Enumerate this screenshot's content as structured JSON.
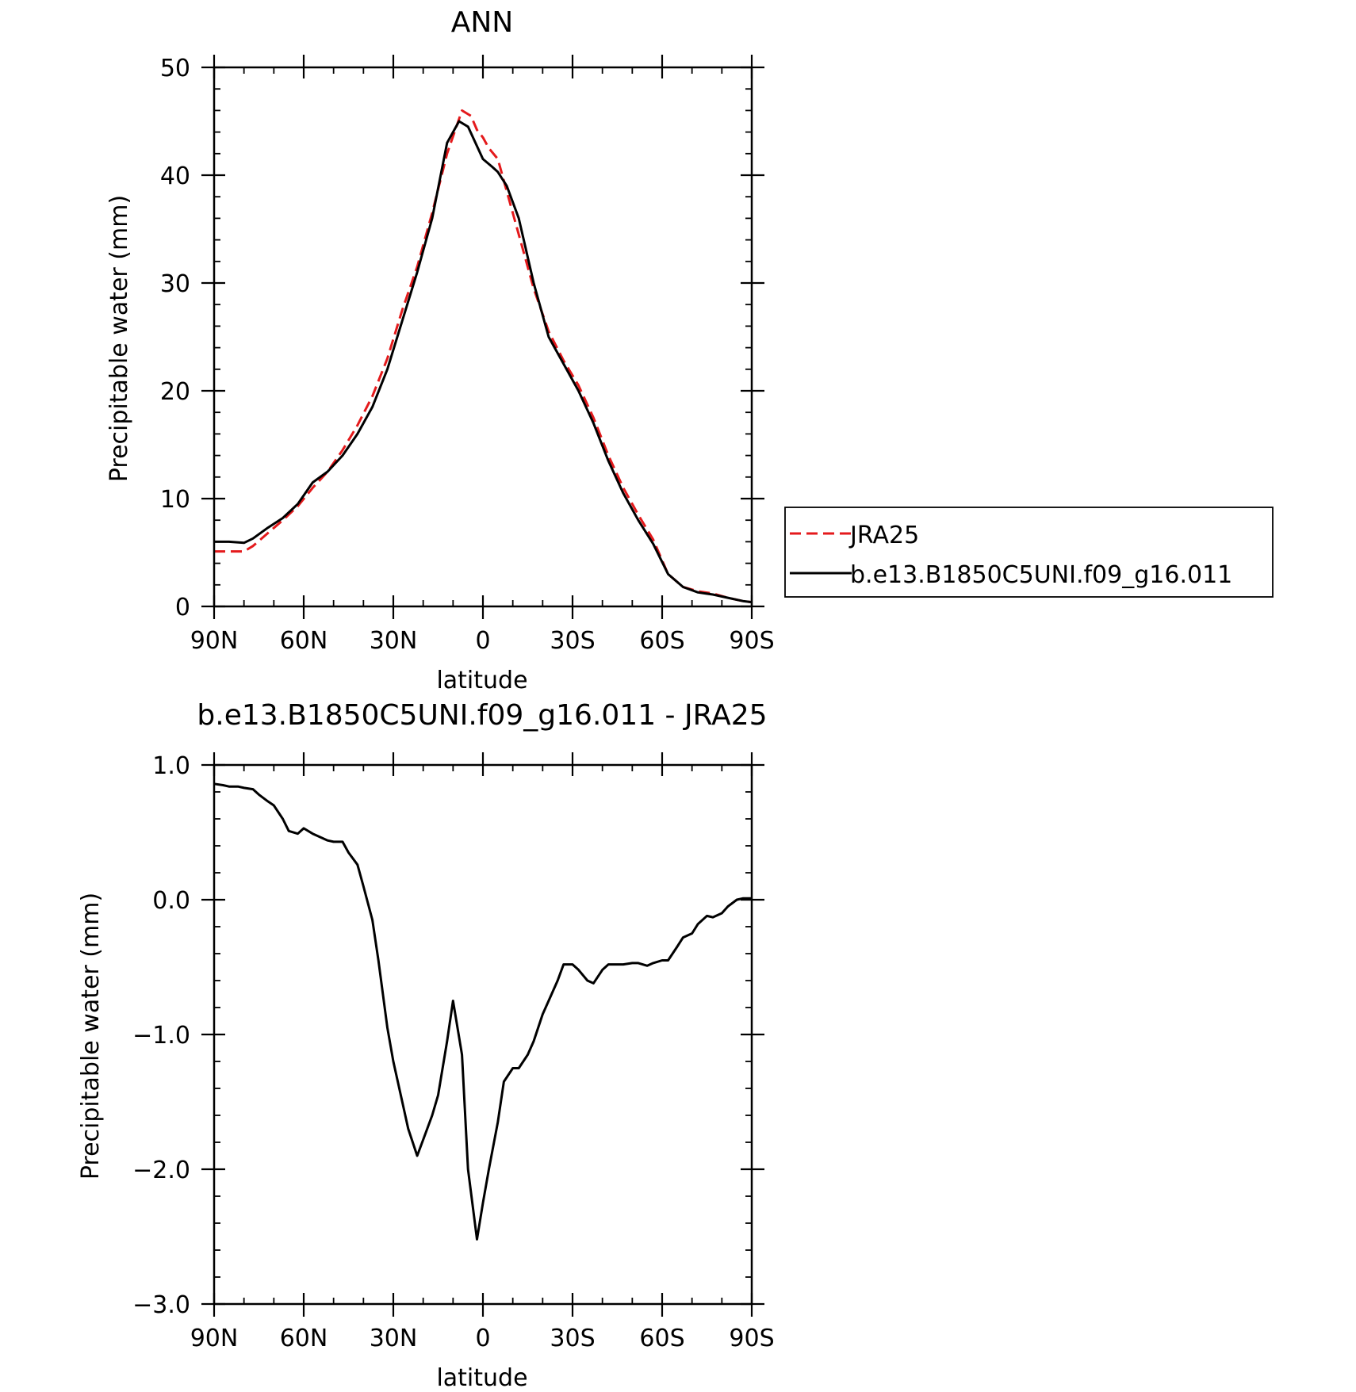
{
  "colors": {
    "jra": "#e41a1c",
    "model": "#000000",
    "axis": "#000000"
  },
  "chart_data": [
    {
      "type": "line",
      "title": "ANN",
      "xlabel": "latitude",
      "ylabel": "Precipitable water (mm)",
      "xlim": [
        90,
        -90
      ],
      "ylim": [
        0,
        50
      ],
      "yticks": [
        0,
        10,
        20,
        30,
        40,
        50
      ],
      "ytick_labels": [
        "0",
        "10",
        "20",
        "30",
        "40",
        "50"
      ],
      "xticks": [
        90,
        60,
        30,
        0,
        -30,
        -60,
        -90
      ],
      "xtick_labels": [
        "90N",
        "60N",
        "30N",
        "0",
        "30S",
        "60S",
        "90S"
      ],
      "legend": {
        "position": "right",
        "entries": [
          "JRA25",
          "b.e13.B1850C5UNI.f09_g16.011"
        ]
      },
      "series": [
        {
          "name": "JRA25",
          "style": "dashed",
          "color": "#e41a1c",
          "x": [
            90,
            80,
            77,
            72,
            67,
            62,
            57,
            52,
            47,
            42,
            37,
            32,
            27,
            22,
            17,
            12,
            7,
            4,
            2,
            0,
            -2,
            -5,
            -8,
            -12,
            -17,
            -22,
            -27,
            -32,
            -37,
            -42,
            -47,
            -52,
            -57,
            -62,
            -67,
            -72,
            -77,
            -82,
            -87,
            -90
          ],
          "y": [
            5.1,
            5.1,
            5.6,
            6.8,
            8.0,
            9.3,
            11.0,
            12.5,
            14.5,
            16.8,
            19.5,
            23.0,
            27.5,
            31.5,
            36.5,
            42.0,
            46.0,
            45.5,
            44.2,
            43.5,
            42.5,
            41.5,
            38.5,
            34.5,
            29.5,
            25.5,
            22.8,
            20.5,
            17.5,
            14.0,
            11.0,
            8.5,
            6.2,
            3.0,
            1.8,
            1.4,
            1.2,
            0.8,
            0.5,
            0.4
          ]
        },
        {
          "name": "b.e13.B1850C5UNI.f09_g16.011",
          "style": "solid",
          "color": "#000000",
          "x": [
            90,
            85,
            80,
            77,
            72,
            67,
            62,
            57,
            52,
            47,
            42,
            37,
            32,
            27,
            22,
            17,
            12,
            8,
            5,
            0,
            -3,
            -5,
            -8,
            -12,
            -17,
            -22,
            -27,
            -32,
            -37,
            -42,
            -47,
            -52,
            -57,
            -62,
            -67,
            -72,
            -77,
            -82,
            -87,
            -90
          ],
          "y": [
            6.0,
            6.0,
            5.9,
            6.3,
            7.3,
            8.2,
            9.5,
            11.5,
            12.5,
            14.0,
            16.0,
            18.5,
            22.0,
            26.5,
            31.0,
            36.0,
            43.0,
            45.0,
            44.5,
            41.5,
            40.8,
            40.3,
            39.0,
            36.0,
            30.0,
            25.0,
            22.5,
            20.0,
            17.0,
            13.5,
            10.5,
            8.0,
            5.8,
            3.0,
            1.8,
            1.3,
            1.1,
            0.8,
            0.5,
            0.4
          ]
        }
      ]
    },
    {
      "type": "line",
      "title": "b.e13.B1850C5UNI.f09_g16.011 - JRA25",
      "xlabel": "latitude",
      "ylabel": "Precipitable water (mm)",
      "xlim": [
        90,
        -90
      ],
      "ylim": [
        -3.0,
        1.0
      ],
      "yticks": [
        -3.0,
        -2.0,
        -1.0,
        0.0,
        1.0
      ],
      "ytick_labels": [
        "−3.0",
        "−2.0",
        "−1.0",
        "0.0",
        "1.0"
      ],
      "xticks": [
        90,
        60,
        30,
        0,
        -30,
        -60,
        -90
      ],
      "xtick_labels": [
        "90N",
        "60N",
        "30N",
        "0",
        "30S",
        "60S",
        "90S"
      ],
      "series": [
        {
          "style": "solid",
          "color": "#000000",
          "x": [
            90,
            87,
            85,
            82,
            80,
            77,
            75,
            72,
            70,
            67,
            65,
            62,
            60,
            57,
            55,
            52,
            50,
            47,
            45,
            42,
            40,
            37,
            35,
            32,
            30,
            27,
            25,
            22,
            20,
            17,
            15,
            12,
            10,
            7,
            5,
            2,
            0,
            -2,
            -5,
            -7,
            -10,
            -12,
            -15,
            -17,
            -20,
            -22,
            -25,
            -27,
            -30,
            -32,
            -35,
            -37,
            -40,
            -42,
            -45,
            -47,
            -50,
            -52,
            -55,
            -57,
            -60,
            -62,
            -65,
            -67,
            -70,
            -72,
            -75,
            -77,
            -80,
            -82,
            -85,
            -87,
            -90
          ],
          "y": [
            0.86,
            0.85,
            0.84,
            0.84,
            0.83,
            0.82,
            0.78,
            0.73,
            0.7,
            0.6,
            0.51,
            0.49,
            0.53,
            0.49,
            0.47,
            0.44,
            0.43,
            0.43,
            0.35,
            0.26,
            0.1,
            -0.15,
            -0.45,
            -0.95,
            -1.2,
            -1.5,
            -1.7,
            -1.9,
            -1.78,
            -1.6,
            -1.45,
            -1.05,
            -0.75,
            -1.15,
            -2.0,
            -2.52,
            -2.25,
            -2.0,
            -1.65,
            -1.35,
            -1.25,
            -1.25,
            -1.15,
            -1.05,
            -0.85,
            -0.75,
            -0.6,
            -0.48,
            -0.48,
            -0.52,
            -0.6,
            -0.62,
            -0.52,
            -0.48,
            -0.48,
            -0.48,
            -0.47,
            -0.47,
            -0.49,
            -0.47,
            -0.45,
            -0.45,
            -0.35,
            -0.28,
            -0.25,
            -0.18,
            -0.12,
            -0.13,
            -0.1,
            -0.05,
            0.0,
            0.01,
            0.01
          ]
        }
      ]
    }
  ]
}
